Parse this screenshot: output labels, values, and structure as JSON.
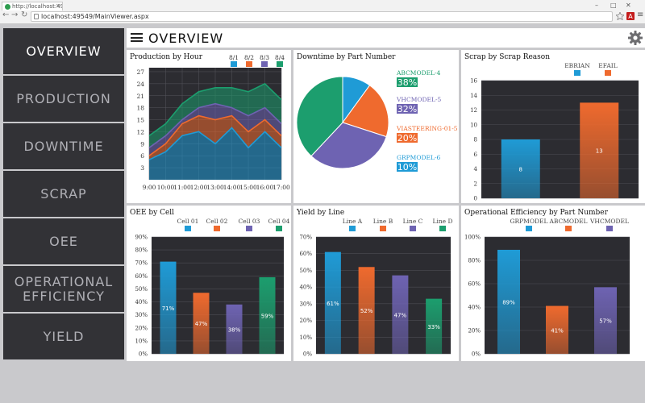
{
  "browser": {
    "tab_title": "http://localhost:49549/M...",
    "url": "localhost:49549/MainViewer.aspx",
    "minimize": "–",
    "maximize": "□",
    "close": "✕",
    "back": "←",
    "forward": "→",
    "reload": "↻",
    "tab_close": "×",
    "menu": "≡"
  },
  "header": {
    "title": "OVERVIEW"
  },
  "sidebar": {
    "items": [
      {
        "label": "OVERVIEW"
      },
      {
        "label": "PRODUCTION"
      },
      {
        "label": "DOWNTIME"
      },
      {
        "label": "SCRAP"
      },
      {
        "label": "OEE"
      },
      {
        "label": "OPERATIONAL EFFICIENCY"
      },
      {
        "label": "YIELD"
      }
    ],
    "active_index": 0
  },
  "colors": {
    "blue": "#1f9bd6",
    "orange": "#ef6a2e",
    "purple": "#6e63b2",
    "green": "#1c9e6e",
    "plot_bg": "#2c2c31",
    "sidebar_bg": "#323236"
  },
  "chart_data": [
    {
      "id": "production",
      "type": "area",
      "title": "Production by Hour",
      "categories": [
        "9:00",
        "10:00",
        "11:00",
        "12:00",
        "13:00",
        "14:00",
        "15:00",
        "16:00",
        "17:00"
      ],
      "yticks": [
        3,
        6,
        9,
        12,
        15,
        18,
        21,
        24,
        27
      ],
      "ylim": [
        0,
        28
      ],
      "stacked": true,
      "series": [
        {
          "name": "8/1",
          "color": "#1f9bd6",
          "values": [
            5,
            7,
            11,
            12,
            9,
            13,
            8,
            12,
            8
          ]
        },
        {
          "name": "8/2",
          "color": "#ef6a2e",
          "values": [
            1,
            2,
            3,
            4,
            6,
            3,
            4,
            3,
            3
          ]
        },
        {
          "name": "8/3",
          "color": "#6e63b2",
          "values": [
            2,
            2,
            1,
            2,
            4,
            2,
            4,
            3,
            3
          ]
        },
        {
          "name": "8/4",
          "color": "#1c9e6e",
          "values": [
            3,
            3,
            4,
            4,
            4,
            5,
            6,
            6,
            6
          ]
        }
      ]
    },
    {
      "id": "downtime",
      "type": "pie",
      "title": "Downtime by Part Number",
      "slices": [
        {
          "name": "ABCMODEL-4",
          "value": 38,
          "label": "38%",
          "color": "#1c9e6e"
        },
        {
          "name": "VHCMODEL-5",
          "value": 32,
          "label": "32%",
          "color": "#6e63b2"
        },
        {
          "name": "VIASTEERING-01-5",
          "value": 20,
          "label": "20%",
          "color": "#ef6a2e"
        },
        {
          "name": "GRPMODEL-6",
          "value": 10,
          "label": "10%",
          "color": "#1f9bd6"
        }
      ]
    },
    {
      "id": "scrap",
      "type": "bar",
      "title": "Scrap by Scrap Reason",
      "categories": [
        "EBRIAN",
        "EFAIL"
      ],
      "values": [
        8,
        13
      ],
      "colors": [
        "#1f9bd6",
        "#ef6a2e"
      ],
      "yticks": [
        0,
        2,
        4,
        6,
        8,
        10,
        12,
        14,
        16
      ],
      "ylim": [
        0,
        16
      ],
      "value_labels": [
        "8",
        "13"
      ]
    },
    {
      "id": "oee",
      "type": "bar",
      "title": "OEE by Cell",
      "categories": [
        "Cell 01",
        "Cell 02",
        "Cell 03",
        "Cell 04"
      ],
      "values": [
        71,
        47,
        38,
        59
      ],
      "colors": [
        "#1f9bd6",
        "#ef6a2e",
        "#6e63b2",
        "#1c9e6e"
      ],
      "yticks": [
        "0%",
        "10%",
        "20%",
        "30%",
        "40%",
        "50%",
        "60%",
        "70%",
        "80%",
        "90%"
      ],
      "ylim": [
        0,
        90
      ],
      "value_labels": [
        "71%",
        "47%",
        "38%",
        "59%"
      ]
    },
    {
      "id": "yield",
      "type": "bar",
      "title": "Yield by Line",
      "categories": [
        "Line A",
        "Line B",
        "Line C",
        "Line D"
      ],
      "values": [
        61,
        52,
        47,
        33
      ],
      "colors": [
        "#1f9bd6",
        "#ef6a2e",
        "#6e63b2",
        "#1c9e6e"
      ],
      "yticks": [
        "0%",
        "10%",
        "20%",
        "30%",
        "40%",
        "50%",
        "60%",
        "70%"
      ],
      "ylim": [
        0,
        70
      ],
      "value_labels": [
        "61%",
        "52%",
        "47%",
        "33%"
      ]
    },
    {
      "id": "opeff",
      "type": "bar",
      "title": "Operational Efficiency by Part Number",
      "categories": [
        "GRPMODEL",
        "ABCMODEL",
        "VHCMODEL"
      ],
      "values": [
        89,
        41,
        57
      ],
      "colors": [
        "#1f9bd6",
        "#ef6a2e",
        "#6e63b2"
      ],
      "yticks": [
        "0%",
        "20%",
        "40%",
        "60%",
        "80%",
        "100%"
      ],
      "ylim": [
        0,
        100
      ],
      "value_labels": [
        "89%",
        "41%",
        "57%"
      ]
    }
  ]
}
